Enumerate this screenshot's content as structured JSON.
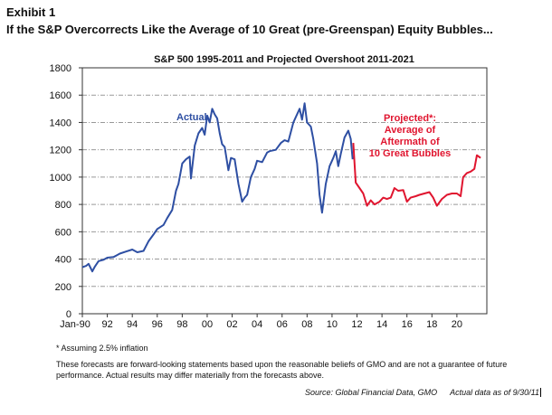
{
  "header": {
    "exhibit": "Exhibit 1",
    "subtitle": "If the S&P Overcorrects Like the Average of 10 Great (pre-Greenspan) Equity Bubbles..."
  },
  "chart_data": {
    "type": "line",
    "title": "S&P 500 1995-2011 and Projected Overshoot 2011-2021",
    "xlabel": "",
    "ylabel": "",
    "xlim": [
      1990,
      2022.4
    ],
    "ylim": [
      0,
      1800
    ],
    "grid": true,
    "yticks": [
      "0",
      "200",
      "400",
      "600",
      "800",
      "1000",
      "1200",
      "1400",
      "1600",
      "1800"
    ],
    "xticks": [
      "Jan-90",
      "92",
      "94",
      "96",
      "98",
      "00",
      "02",
      "04",
      "06",
      "08",
      "10",
      "12",
      "14",
      "16",
      "18",
      "20"
    ],
    "series": [
      {
        "name": "Actual",
        "color": "#2e4fa3",
        "x": [
          1990.0,
          1990.3,
          1990.5,
          1990.8,
          1991.0,
          1991.3,
          1991.7,
          1992.0,
          1992.5,
          1993.0,
          1993.5,
          1994.0,
          1994.4,
          1994.9,
          1995.3,
          1995.7,
          1996.0,
          1996.5,
          1996.8,
          1997.2,
          1997.5,
          1997.7,
          1998.0,
          1998.3,
          1998.6,
          1998.7,
          1999.0,
          1999.3,
          1999.6,
          1999.8,
          2000.0,
          2000.2,
          2000.4,
          2000.6,
          2000.8,
          2001.0,
          2001.2,
          2001.4,
          2001.7,
          2001.9,
          2002.2,
          2002.5,
          2002.8,
          2003.0,
          2003.2,
          2003.5,
          2003.8,
          2004.0,
          2004.4,
          2004.8,
          2005.0,
          2005.5,
          2005.9,
          2006.2,
          2006.5,
          2006.9,
          2007.2,
          2007.4,
          2007.6,
          2007.8,
          2008.0,
          2008.3,
          2008.5,
          2008.8,
          2009.0,
          2009.2,
          2009.5,
          2009.8,
          2010.1,
          2010.3,
          2010.5,
          2010.7,
          2011.0,
          2011.3,
          2011.5,
          2011.65
        ],
        "y": [
          340,
          350,
          365,
          310,
          345,
          385,
          395,
          410,
          415,
          440,
          455,
          470,
          450,
          460,
          530,
          580,
          620,
          650,
          700,
          760,
          900,
          950,
          1100,
          1130,
          1150,
          990,
          1230,
          1320,
          1360,
          1310,
          1450,
          1400,
          1500,
          1460,
          1430,
          1320,
          1240,
          1220,
          1050,
          1140,
          1130,
          950,
          820,
          850,
          870,
          1000,
          1060,
          1120,
          1110,
          1180,
          1190,
          1200,
          1250,
          1270,
          1260,
          1400,
          1460,
          1500,
          1420,
          1540,
          1400,
          1370,
          1280,
          1100,
          870,
          740,
          950,
          1080,
          1140,
          1190,
          1080,
          1170,
          1290,
          1340,
          1280,
          1130
        ]
      },
      {
        "name": "Projected",
        "color": "#e0152f",
        "x": [
          2011.7,
          2011.9,
          2012.2,
          2012.5,
          2012.8,
          2013.1,
          2013.4,
          2013.8,
          2014.1,
          2014.4,
          2014.7,
          2015.0,
          2015.3,
          2015.7,
          2016.0,
          2016.3,
          2016.7,
          2017.0,
          2017.4,
          2017.8,
          2018.1,
          2018.4,
          2018.8,
          2019.2,
          2019.6,
          2020.0,
          2020.3,
          2020.5,
          2020.8,
          2021.1,
          2021.4,
          2021.6,
          2021.9
        ],
        "y": [
          1250,
          960,
          920,
          880,
          790,
          830,
          800,
          820,
          850,
          840,
          850,
          920,
          900,
          905,
          820,
          850,
          860,
          870,
          880,
          890,
          850,
          790,
          840,
          870,
          880,
          880,
          860,
          1000,
          1030,
          1040,
          1060,
          1160,
          1140
        ]
      }
    ],
    "annotations": {
      "actual": "Actual",
      "projected": [
        "Projected*:",
        "Average of",
        "Aftermath of",
        "10 Great Bubbles"
      ]
    }
  },
  "footer": {
    "footnote": "* Assuming 2.5% inflation",
    "disclaimer": "These forecasts are forward-looking statements based upon the reasonable beliefs of GMO and are not a guarantee of future performance. Actual results may differ materially from the forecasts above.",
    "source": "Source:  Global Financial Data, GMO",
    "asof": "Actual data as of 9/30/11"
  }
}
